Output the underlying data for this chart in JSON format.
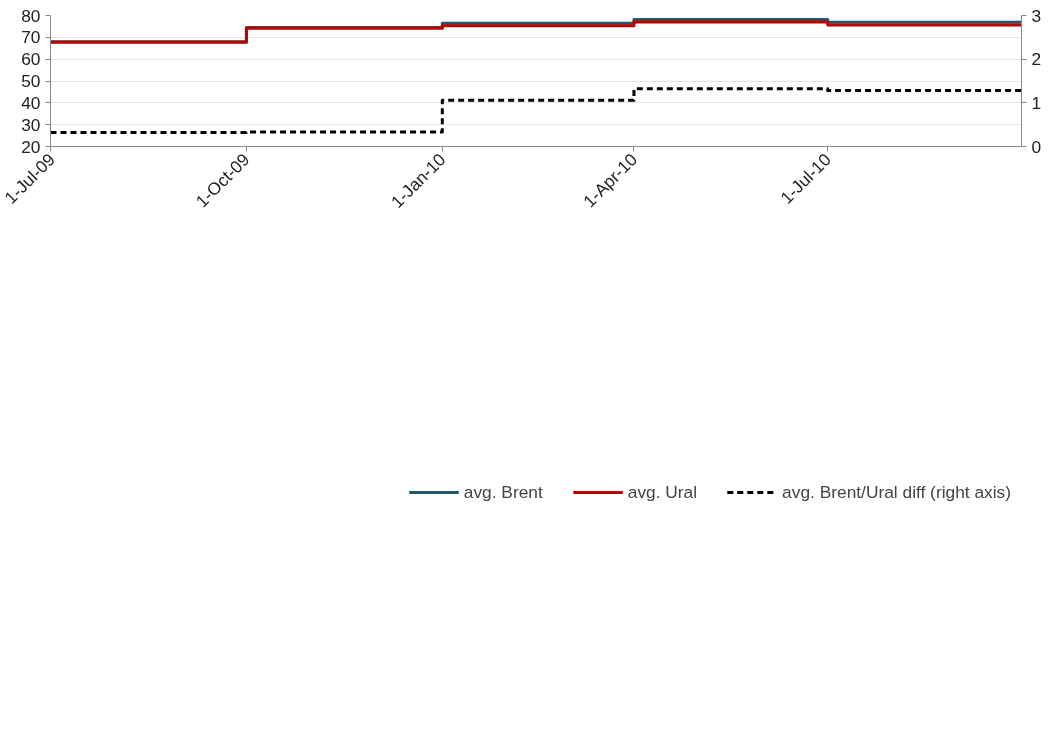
{
  "chart_data": {
    "type": "step",
    "x": [
      "2009-07-01",
      "2009-10-01",
      "2010-01-01",
      "2010-04-01",
      "2010-07-01",
      "2010-09-30"
    ],
    "series": [
      {
        "name": "avg. Brent",
        "color": "#215968",
        "values": [
          68.0,
          74.5,
          76.4,
          78.2,
          76.9,
          76.9
        ]
      },
      {
        "name": "avg. Ural",
        "color": "#c00000",
        "values": [
          67.8,
          74.2,
          75.3,
          77.0,
          75.6,
          75.6
        ]
      },
      {
        "name": "avg. Brent/Ural diff (right axis)",
        "color": "#000000",
        "axis": "y2",
        "line_style": "dashed",
        "values": [
          0.32,
          0.33,
          1.06,
          1.32,
          1.28,
          1.28
        ]
      }
    ],
    "xlim": [
      "2009-07-01",
      "2010-09-30"
    ],
    "xticks": [
      {
        "value": "2009-07-01",
        "label": "1-Jul-09"
      },
      {
        "value": "2009-10-01",
        "label": "1-Oct-09"
      },
      {
        "value": "2010-01-01",
        "label": "1-Jan-10"
      },
      {
        "value": "2010-04-01",
        "label": "1-Apr-10"
      },
      {
        "value": "2010-07-01",
        "label": "1-Jul-10"
      }
    ],
    "ylim": [
      20,
      80
    ],
    "yticks": [
      20,
      30,
      40,
      50,
      60,
      70,
      80
    ],
    "y2lim": [
      0,
      3
    ],
    "y2ticks": [
      0,
      1,
      2,
      3
    ],
    "grid": "y",
    "legend": "bottom",
    "line_style": "solid"
  }
}
